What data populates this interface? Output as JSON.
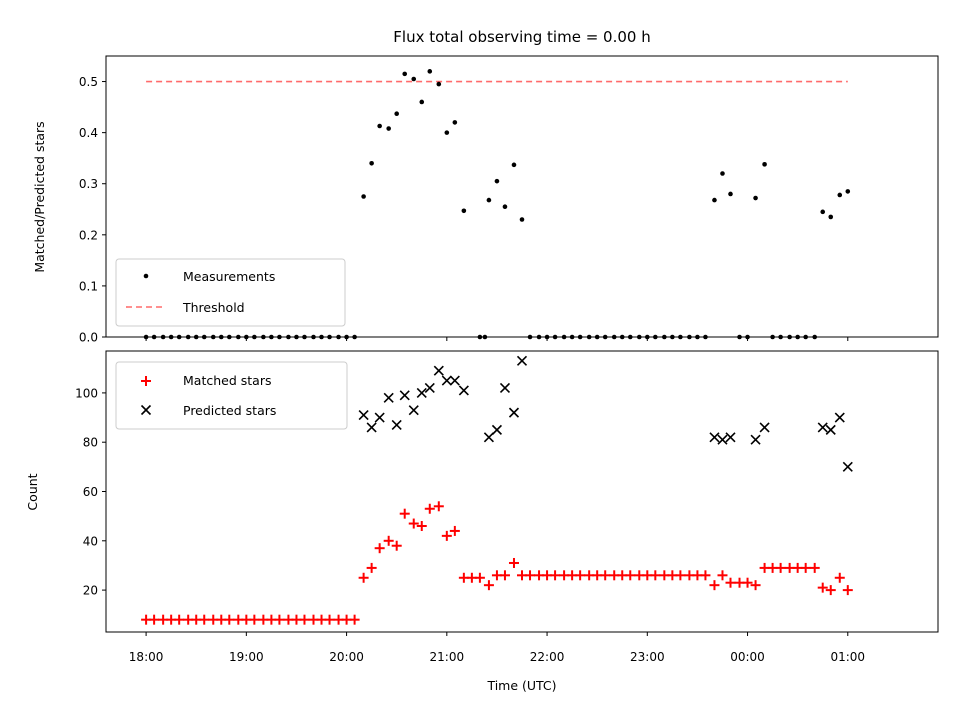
{
  "chart_data": [
    {
      "type": "scatter",
      "title": "Flux total observing time = 0.00 h",
      "xlabel": "",
      "ylabel": "Matched/Predicted stars",
      "xlim_hours": [
        17.6,
        25.9
      ],
      "ylim": [
        0.0,
        0.55
      ],
      "yticks": [
        "0.0",
        "0.1",
        "0.2",
        "0.3",
        "0.4",
        "0.5"
      ],
      "legend": {
        "placement": "lower-left",
        "entries": [
          {
            "label": "Measurements",
            "marker": "dot",
            "color": "#000000"
          },
          {
            "label": "Threshold",
            "marker": "dashed-line",
            "color": "#ff6b6b"
          }
        ]
      },
      "threshold": 0.5,
      "threshold_x_hours": [
        18.0,
        25.0
      ],
      "series": [
        {
          "name": "Measurements",
          "points": [
            [
              18.0,
              0
            ],
            [
              18.08,
              0
            ],
            [
              18.17,
              0
            ],
            [
              18.25,
              0
            ],
            [
              18.33,
              0
            ],
            [
              18.42,
              0
            ],
            [
              18.5,
              0
            ],
            [
              18.58,
              0
            ],
            [
              18.67,
              0
            ],
            [
              18.75,
              0
            ],
            [
              18.83,
              0
            ],
            [
              18.92,
              0
            ],
            [
              19.0,
              0
            ],
            [
              19.08,
              0
            ],
            [
              19.17,
              0
            ],
            [
              19.25,
              0
            ],
            [
              19.33,
              0
            ],
            [
              19.42,
              0
            ],
            [
              19.5,
              0
            ],
            [
              19.58,
              0
            ],
            [
              19.67,
              0
            ],
            [
              19.75,
              0
            ],
            [
              19.83,
              0
            ],
            [
              19.92,
              0
            ],
            [
              20.0,
              0
            ],
            [
              20.08,
              0
            ],
            [
              20.17,
              0.275
            ],
            [
              20.25,
              0.34
            ],
            [
              20.33,
              0.413
            ],
            [
              20.42,
              0.408
            ],
            [
              20.5,
              0.437
            ],
            [
              20.58,
              0.515
            ],
            [
              20.67,
              0.505
            ],
            [
              20.75,
              0.46
            ],
            [
              20.83,
              0.52
            ],
            [
              20.92,
              0.495
            ],
            [
              21.0,
              0.4
            ],
            [
              21.08,
              0.42
            ],
            [
              21.17,
              0.247
            ],
            [
              21.33,
              0
            ],
            [
              21.38,
              0
            ],
            [
              21.42,
              0.268
            ],
            [
              21.5,
              0.305
            ],
            [
              21.58,
              0.255
            ],
            [
              21.67,
              0.337
            ],
            [
              21.75,
              0.23
            ],
            [
              21.83,
              0
            ],
            [
              21.92,
              0
            ],
            [
              22.0,
              0
            ],
            [
              22.08,
              0
            ],
            [
              22.17,
              0
            ],
            [
              22.25,
              0
            ],
            [
              22.33,
              0
            ],
            [
              22.42,
              0
            ],
            [
              22.5,
              0
            ],
            [
              22.58,
              0
            ],
            [
              22.67,
              0
            ],
            [
              22.75,
              0
            ],
            [
              22.83,
              0
            ],
            [
              22.92,
              0
            ],
            [
              23.0,
              0
            ],
            [
              23.08,
              0
            ],
            [
              23.17,
              0
            ],
            [
              23.25,
              0
            ],
            [
              23.33,
              0
            ],
            [
              23.42,
              0
            ],
            [
              23.5,
              0
            ],
            [
              23.58,
              0
            ],
            [
              23.67,
              0.268
            ],
            [
              23.75,
              0.32
            ],
            [
              23.83,
              0.28
            ],
            [
              23.92,
              0
            ],
            [
              24.0,
              0
            ],
            [
              24.08,
              0.272
            ],
            [
              24.17,
              0.338
            ],
            [
              24.25,
              0
            ],
            [
              24.33,
              0
            ],
            [
              24.42,
              0
            ],
            [
              24.5,
              0
            ],
            [
              24.58,
              0
            ],
            [
              24.67,
              0
            ],
            [
              24.75,
              0.245
            ],
            [
              24.83,
              0.235
            ],
            [
              24.92,
              0.278
            ],
            [
              25.0,
              0.285
            ]
          ]
        }
      ]
    },
    {
      "type": "scatter",
      "title": "",
      "xlabel": "Time (UTC)",
      "ylabel": "Count",
      "xlim_hours": [
        17.6,
        25.9
      ],
      "ylim": [
        3,
        117
      ],
      "yticks": [
        "20",
        "40",
        "60",
        "80",
        "100"
      ],
      "xticks": [
        "18:00",
        "19:00",
        "20:00",
        "21:00",
        "22:00",
        "23:00",
        "00:00",
        "01:00"
      ],
      "legend": {
        "placement": "upper-left",
        "entries": [
          {
            "label": "Matched stars",
            "marker": "plus",
            "color": "#ff0000"
          },
          {
            "label": "Predicted stars",
            "marker": "x",
            "color": "#000000"
          }
        ]
      },
      "series": [
        {
          "name": "Matched stars",
          "points": [
            [
              18.0,
              8
            ],
            [
              18.08,
              8
            ],
            [
              18.17,
              8
            ],
            [
              18.25,
              8
            ],
            [
              18.33,
              8
            ],
            [
              18.42,
              8
            ],
            [
              18.5,
              8
            ],
            [
              18.58,
              8
            ],
            [
              18.67,
              8
            ],
            [
              18.75,
              8
            ],
            [
              18.83,
              8
            ],
            [
              18.92,
              8
            ],
            [
              19.0,
              8
            ],
            [
              19.08,
              8
            ],
            [
              19.17,
              8
            ],
            [
              19.25,
              8
            ],
            [
              19.33,
              8
            ],
            [
              19.42,
              8
            ],
            [
              19.5,
              8
            ],
            [
              19.58,
              8
            ],
            [
              19.67,
              8
            ],
            [
              19.75,
              8
            ],
            [
              19.83,
              8
            ],
            [
              19.92,
              8
            ],
            [
              20.0,
              8
            ],
            [
              20.08,
              8
            ],
            [
              20.17,
              25
            ],
            [
              20.25,
              29
            ],
            [
              20.33,
              37
            ],
            [
              20.42,
              40
            ],
            [
              20.5,
              38
            ],
            [
              20.58,
              51
            ],
            [
              20.67,
              47
            ],
            [
              20.75,
              46
            ],
            [
              20.83,
              53
            ],
            [
              20.92,
              54
            ],
            [
              21.0,
              42
            ],
            [
              21.08,
              44
            ],
            [
              21.17,
              25
            ],
            [
              21.25,
              25
            ],
            [
              21.33,
              25
            ],
            [
              21.42,
              22
            ],
            [
              21.5,
              26
            ],
            [
              21.58,
              26
            ],
            [
              21.67,
              31
            ],
            [
              21.75,
              26
            ],
            [
              21.83,
              26
            ],
            [
              21.92,
              26
            ],
            [
              22.0,
              26
            ],
            [
              22.08,
              26
            ],
            [
              22.17,
              26
            ],
            [
              22.25,
              26
            ],
            [
              22.33,
              26
            ],
            [
              22.42,
              26
            ],
            [
              22.5,
              26
            ],
            [
              22.58,
              26
            ],
            [
              22.67,
              26
            ],
            [
              22.75,
              26
            ],
            [
              22.83,
              26
            ],
            [
              22.92,
              26
            ],
            [
              23.0,
              26
            ],
            [
              23.08,
              26
            ],
            [
              23.17,
              26
            ],
            [
              23.25,
              26
            ],
            [
              23.33,
              26
            ],
            [
              23.42,
              26
            ],
            [
              23.5,
              26
            ],
            [
              23.58,
              26
            ],
            [
              23.67,
              22
            ],
            [
              23.75,
              26
            ],
            [
              23.83,
              23
            ],
            [
              23.92,
              23
            ],
            [
              24.0,
              23
            ],
            [
              24.08,
              22
            ],
            [
              24.17,
              29
            ],
            [
              24.25,
              29
            ],
            [
              24.33,
              29
            ],
            [
              24.42,
              29
            ],
            [
              24.5,
              29
            ],
            [
              24.58,
              29
            ],
            [
              24.67,
              29
            ],
            [
              24.75,
              21
            ],
            [
              24.83,
              20
            ],
            [
              24.92,
              25
            ],
            [
              25.0,
              20
            ]
          ]
        },
        {
          "name": "Predicted stars",
          "points": [
            [
              20.17,
              91
            ],
            [
              20.25,
              86
            ],
            [
              20.33,
              90
            ],
            [
              20.42,
              98
            ],
            [
              20.5,
              87
            ],
            [
              20.58,
              99
            ],
            [
              20.67,
              93
            ],
            [
              20.75,
              100
            ],
            [
              20.83,
              102
            ],
            [
              20.92,
              109
            ],
            [
              21.0,
              105
            ],
            [
              21.08,
              105
            ],
            [
              21.17,
              101
            ],
            [
              21.42,
              82
            ],
            [
              21.5,
              85
            ],
            [
              21.58,
              102
            ],
            [
              21.67,
              92
            ],
            [
              21.75,
              113
            ],
            [
              23.67,
              82
            ],
            [
              23.75,
              81
            ],
            [
              23.83,
              82
            ],
            [
              24.08,
              81
            ],
            [
              24.17,
              86
            ],
            [
              24.75,
              86
            ],
            [
              24.83,
              85
            ],
            [
              24.92,
              90
            ],
            [
              25.0,
              70
            ]
          ]
        }
      ]
    }
  ]
}
